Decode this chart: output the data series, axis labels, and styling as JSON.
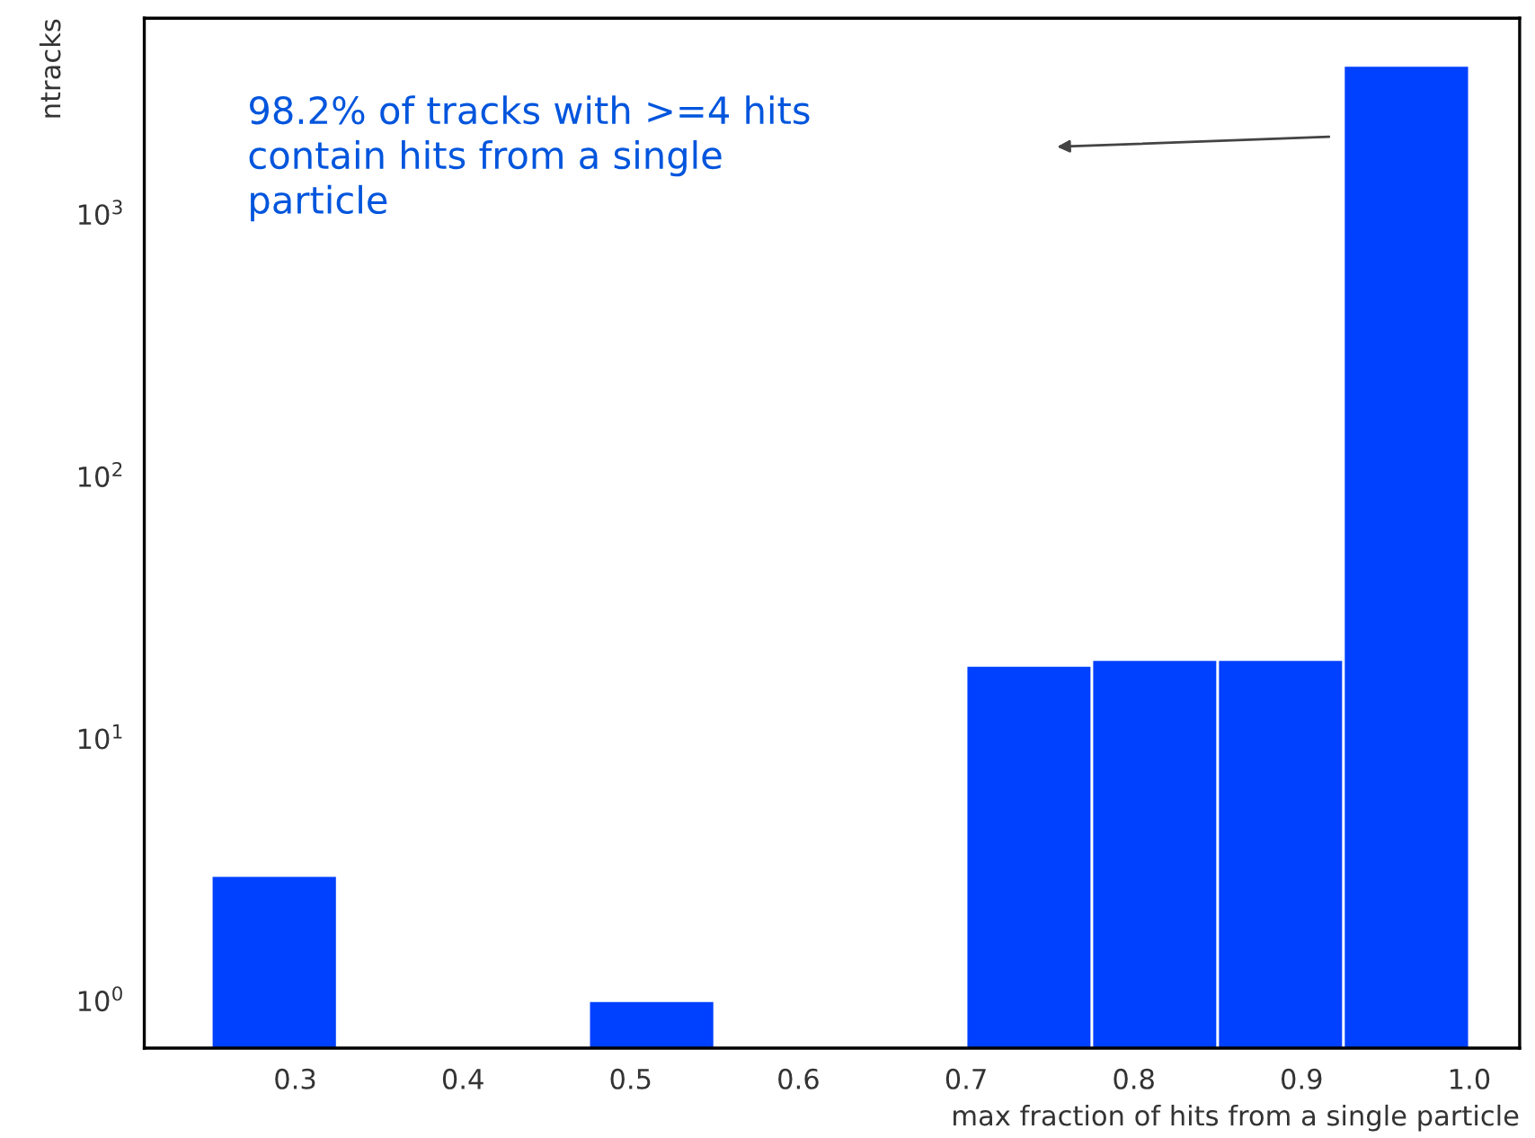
{
  "chart_data": {
    "type": "histogram",
    "xlabel": "max fraction of hits from a single particle",
    "ylabel": "ntracks",
    "bins": [
      0.25,
      0.325,
      0.4,
      0.475,
      0.55,
      0.625,
      0.7,
      0.775,
      0.85,
      0.925,
      1.0
    ],
    "values": [
      3,
      null,
      null,
      1,
      null,
      null,
      19,
      20,
      20,
      3700
    ],
    "color": "#0040ff",
    "log": "y",
    "xlim": [
      0.21,
      1.03
    ],
    "xticks": [
      0.3,
      0.4,
      0.5,
      0.6,
      0.7,
      0.8,
      0.9,
      {
        "value": 1.0,
        "label": "1.0"
      }
    ],
    "ylim": [
      0.66,
      5600
    ],
    "yticks": [
      {
        "value": 1,
        "label": "10$^{0}$"
      },
      {
        "value": 10,
        "label": "10$^{1}$"
      },
      {
        "value": 100,
        "label": "10$^{2}$"
      },
      {
        "value": 1000,
        "label": "10$^{3}$"
      }
    ],
    "grid": false,
    "annotations": [
      "98.2% of tracks with >=4 hits\ncontain hits from a single\nparticle"
    ]
  }
}
